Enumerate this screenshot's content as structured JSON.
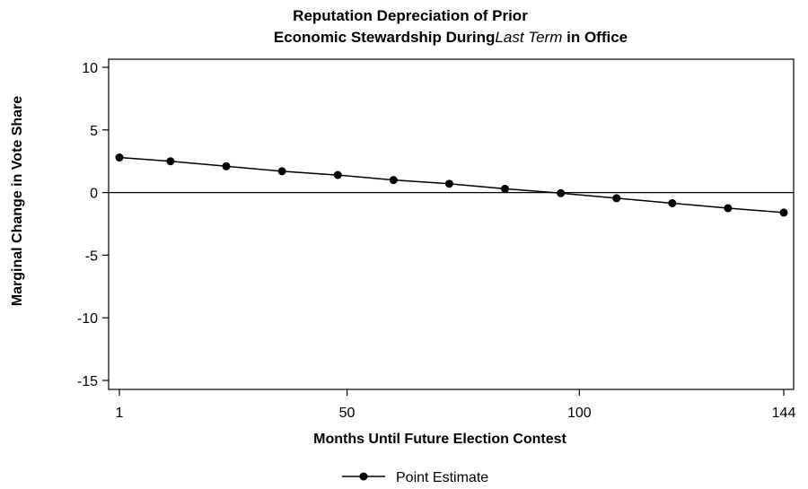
{
  "chart_data": {
    "type": "line",
    "title_line1": "Reputation Depreciation of Prior",
    "title_line2_a": "Economic Stewardship During",
    "title_line2_b": "Last Term",
    "title_line2_c": " in Office",
    "xlabel": "Months Until Future Election Contest",
    "ylabel": "Marginal Change in Vote Share",
    "xlim": [
      1,
      144
    ],
    "ylim": [
      -15,
      10
    ],
    "x_ticks": [
      1,
      50,
      100,
      144
    ],
    "y_ticks": [
      10,
      5,
      0,
      -5,
      -10,
      -15
    ],
    "reference_line_y": 0,
    "grid": false,
    "legend_position": "bottom",
    "series": [
      {
        "name": "Point Estimate",
        "color": "#000000",
        "marker": "circle",
        "x": [
          1,
          12,
          24,
          36,
          48,
          60,
          72,
          84,
          96,
          108,
          120,
          132,
          144
        ],
        "y": [
          2.8,
          2.5,
          2.1,
          1.7,
          1.4,
          1.0,
          0.7,
          0.3,
          -0.05,
          -0.45,
          -0.85,
          -1.25,
          -1.6
        ]
      }
    ]
  }
}
